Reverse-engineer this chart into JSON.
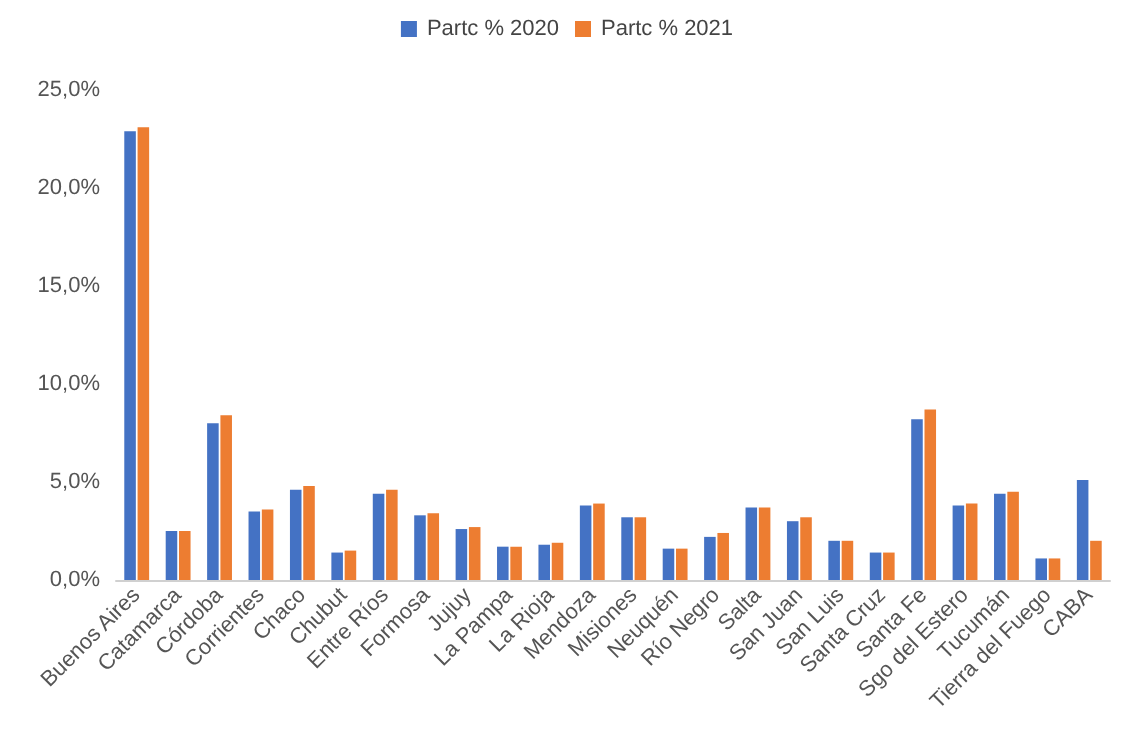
{
  "chart_data": {
    "type": "bar",
    "categories": [
      "Buenos Aires",
      "Catamarca",
      "Córdoba",
      "Corrientes",
      "Chaco",
      "Chubut",
      "Entre Ríos",
      "Formosa",
      "Jujuy",
      "La Pampa",
      "La Rioja",
      "Mendoza",
      "Misiones",
      "Neuquén",
      "Río Negro",
      "Salta",
      "San Juan",
      "San Luis",
      "Santa Cruz",
      "Santa Fe",
      "Sgo del Estero",
      "Tucumán",
      "Tierra del Fuego",
      "CABA"
    ],
    "series": [
      {
        "name": "Partc % 2020",
        "color": "#4472c4",
        "values": [
          22.9,
          2.5,
          8.0,
          3.5,
          4.6,
          1.4,
          4.4,
          3.3,
          2.6,
          1.7,
          1.8,
          3.8,
          3.2,
          1.6,
          2.2,
          3.7,
          3.0,
          2.0,
          1.4,
          8.2,
          3.8,
          4.4,
          1.1,
          5.1
        ]
      },
      {
        "name": "Partc % 2021",
        "color": "#ed7d31",
        "values": [
          23.1,
          2.5,
          8.4,
          3.6,
          4.8,
          1.5,
          4.6,
          3.4,
          2.7,
          1.7,
          1.9,
          3.9,
          3.2,
          1.6,
          2.4,
          3.7,
          3.2,
          2.0,
          1.4,
          8.7,
          3.9,
          4.5,
          1.1,
          2.0
        ]
      }
    ],
    "ylim": [
      0,
      25
    ],
    "yticks": [
      {
        "value": 0,
        "label": "0,0%"
      },
      {
        "value": 5,
        "label": "5,0%"
      },
      {
        "value": 10,
        "label": "10,0%"
      },
      {
        "value": 15,
        "label": "15,0%"
      },
      {
        "value": 20,
        "label": "20,0%"
      },
      {
        "value": 25,
        "label": "25,0%"
      }
    ],
    "grid": false,
    "legend": "top"
  }
}
